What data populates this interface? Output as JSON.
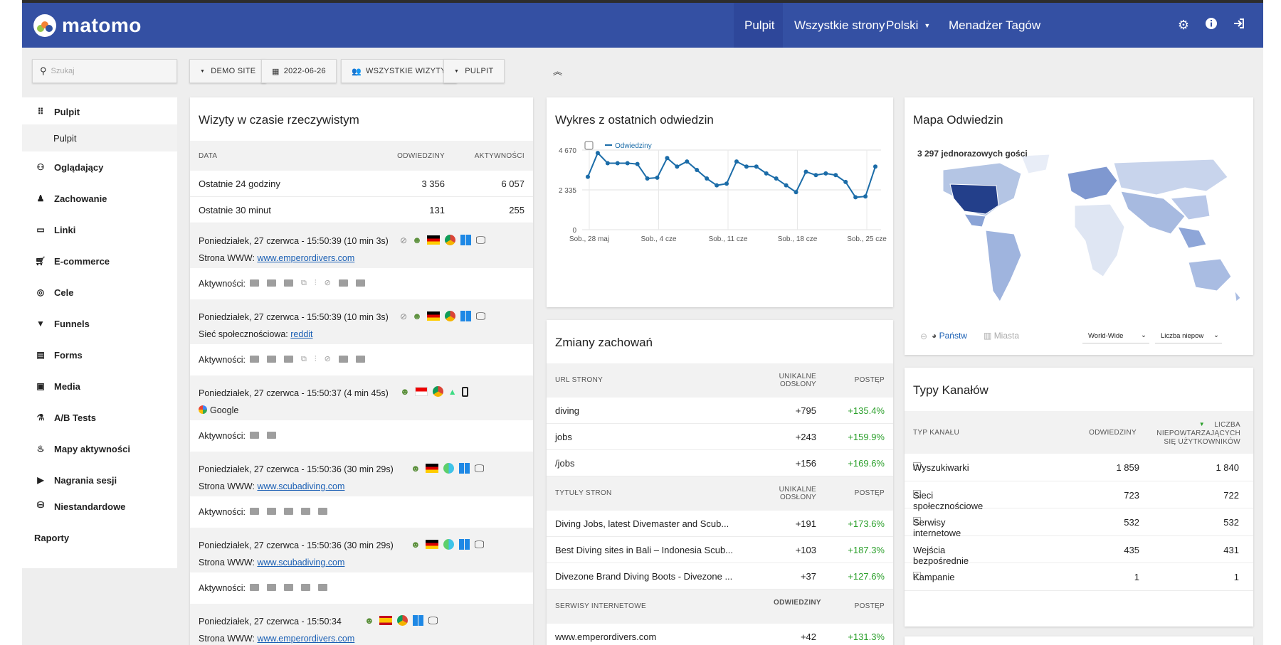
{
  "header": {
    "logo_text": "matomo",
    "nav": [
      "Pulpit",
      "Wszystkie strony",
      "Polski",
      "Menadżer Tagów"
    ],
    "icons": [
      "gear-icon",
      "info-icon",
      "logout-icon"
    ]
  },
  "toolbar": {
    "search_placeholder": "Szukaj",
    "site": "DEMO SITE",
    "date": "2022-06-26",
    "segment": "WSZYSTKIE WIZYTY",
    "dashboard": "PULPIT"
  },
  "sidebar": {
    "items": [
      "Pulpit",
      "Oglądający",
      "Zachowanie",
      "Linki",
      "E-commerce",
      "Cele",
      "Funnels",
      "Forms",
      "Media",
      "A/B Tests",
      "Mapy aktywności",
      "Nagrania sesji",
      "Niestandardowe"
    ],
    "sub_item": "Pulpit",
    "last_item_line2": "Raporty"
  },
  "realtime": {
    "title": "Wizyty w czasie rzeczywistym",
    "col_data": "DATA",
    "col_visits": "ODWIEDZINY",
    "col_actions": "AKTYWNOŚCI",
    "rows": [
      {
        "label": "Ostatnie 24 godziny",
        "visits": "3 356",
        "actions": "6 057"
      },
      {
        "label": "Ostatnie 30 minut",
        "visits": "131",
        "actions": "255"
      }
    ],
    "activities_label": "Aktywności:",
    "visits": [
      {
        "time": "Poniedziałek, 27 czerwca - 15:50:39 (10 min 3s)",
        "src_label": "Strona WWW:",
        "src": "www.emperordivers.com"
      },
      {
        "time": "Poniedziałek, 27 czerwca - 15:50:39 (10 min 3s)",
        "src_label": "Sieć społecznościowa:",
        "src": "reddit"
      },
      {
        "time": "Poniedziałek, 27 czerwca - 15:50:37 (4 min 45s)",
        "src_label": "",
        "src": "Google"
      },
      {
        "time": "Poniedziałek, 27 czerwca - 15:50:36 (30 min 29s)",
        "src_label": "Strona WWW:",
        "src": "www.scubadiving.com"
      },
      {
        "time": "Poniedziałek, 27 czerwca - 15:50:36 (30 min 29s)",
        "src_label": "Strona WWW:",
        "src": "www.scubadiving.com"
      },
      {
        "time": "Poniedziałek, 27 czerwca - 15:50:34",
        "src_label": "Strona WWW:",
        "src": "www.emperordivers.com"
      }
    ]
  },
  "evolution": {
    "title": "Wykres z ostatnich odwiedzin"
  },
  "chart_data": {
    "type": "line",
    "legend": [
      "Odwiedziny"
    ],
    "y_ticks": [
      "4 670",
      "2 335",
      "0"
    ],
    "x_ticks": [
      "Sob., 28 maj",
      "Sob., 4 cze",
      "Sob., 11 cze",
      "Sob., 18 cze",
      "Sob., 25 cze"
    ],
    "ylim": [
      0,
      4670
    ],
    "series": [
      {
        "name": "Odwiedziny",
        "values": [
          3100,
          4500,
          3900,
          3900,
          3900,
          3850,
          3000,
          3050,
          4200,
          3700,
          4000,
          3500,
          3000,
          2600,
          2700,
          4000,
          3700,
          3700,
          3300,
          3000,
          2600,
          2200,
          3400,
          3200,
          3300,
          3200,
          2800,
          1900,
          1950,
          3700
        ]
      }
    ],
    "grid": true,
    "accent": "#1b6ca8"
  },
  "map": {
    "title": "Mapa Odwiedzin",
    "summary": "3 297 jednorazowych gości",
    "tab_countries": "Państw",
    "tab_cities": "Miasta",
    "region": "World-Wide",
    "metric": "Liczba niepow"
  },
  "changes": {
    "title": "Zmiany zachowań",
    "sections": [
      {
        "h1": "URL STRONY",
        "h2": "UNIKALNE ODSŁONY",
        "h3": "POSTĘP",
        "rows": [
          [
            "diving",
            "+795",
            "+135.4%"
          ],
          [
            "jobs",
            "+243",
            "+159.9%"
          ],
          [
            "/jobs",
            "+156",
            "+169.6%"
          ]
        ]
      },
      {
        "h1": "TYTUŁY STRON",
        "h2": "UNIKALNE ODSŁONY",
        "h3": "POSTĘP",
        "rows": [
          [
            "Diving Jobs, latest Divemaster and Scub...",
            "+191",
            "+173.6%"
          ],
          [
            "Best Diving sites in Bali – Indonesia Scub...",
            "+103",
            "+187.3%"
          ],
          [
            "Divezone Brand Diving Boots - Divezone ...",
            "+37",
            "+127.6%"
          ]
        ]
      },
      {
        "h1": "SERWISY INTERNETOWE",
        "h2": "ODWIEDZINY",
        "h3": "POSTĘP",
        "rows": [
          [
            "www.emperordivers.com",
            "+42",
            "+131.3%"
          ]
        ]
      }
    ]
  },
  "channels": {
    "title": "Typy Kanałów",
    "col_type": "TYP KANAŁU",
    "col_visits": "ODWIEDZINY",
    "col_unique": "LICZBA NIEPOWTARZAJĄCYCH SIĘ UŻYTKOWNIKÓW",
    "rows": [
      [
        "Wyszukiwarki",
        "1 859",
        "1 840"
      ],
      [
        "Sieci społecznościowe",
        "723",
        "722"
      ],
      [
        "Serwisy internetowe",
        "532",
        "532"
      ],
      [
        "Wejścia bezpośrednie",
        "435",
        "431"
      ],
      [
        "Kampanie",
        "1",
        "1"
      ]
    ]
  }
}
